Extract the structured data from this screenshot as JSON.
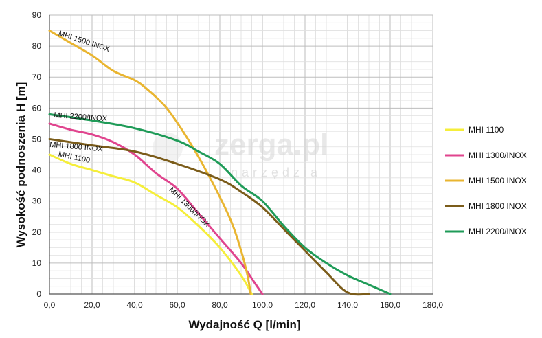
{
  "chart_data": {
    "type": "line",
    "xlabel": "Wydajność Q [l/min]",
    "ylabel": "Wysokość podnoszenia H [m]",
    "xlim": [
      0,
      180
    ],
    "ylim": [
      0,
      90
    ],
    "x_ticks": [
      0,
      20,
      40,
      60,
      80,
      100,
      120,
      140,
      160,
      180
    ],
    "x_tick_labels": [
      "0,0",
      "20,0",
      "40,0",
      "60,0",
      "80,0",
      "100,0",
      "120,0",
      "140,0",
      "160,0",
      "180,0"
    ],
    "y_ticks": [
      0,
      10,
      20,
      30,
      40,
      50,
      60,
      70,
      80,
      90
    ],
    "y_tick_labels": [
      "0",
      "10",
      "20",
      "30",
      "40",
      "50",
      "60",
      "70",
      "80",
      "90"
    ],
    "grid": true,
    "legend_position": "right",
    "series": [
      {
        "name": "MHI 1100",
        "curve_label": "MHI 1100",
        "color": "#f5ee3a",
        "points": [
          [
            0,
            45
          ],
          [
            10,
            42
          ],
          [
            20,
            40
          ],
          [
            30,
            38
          ],
          [
            40,
            36
          ],
          [
            50,
            32
          ],
          [
            60,
            28
          ],
          [
            70,
            22
          ],
          [
            80,
            15
          ],
          [
            90,
            6
          ],
          [
            95,
            0
          ]
        ]
      },
      {
        "name": "MHI 1300/INOX",
        "curve_label": "MHI 1300/INOX",
        "color": "#e0448e",
        "points": [
          [
            0,
            55
          ],
          [
            10,
            53
          ],
          [
            20,
            51.5
          ],
          [
            30,
            49
          ],
          [
            40,
            45
          ],
          [
            50,
            39
          ],
          [
            60,
            34
          ],
          [
            70,
            26
          ],
          [
            80,
            18
          ],
          [
            90,
            10
          ],
          [
            96,
            4
          ],
          [
            100,
            0
          ]
        ]
      },
      {
        "name": "MHI 1500 INOX",
        "curve_label": "MHI 1500 INOX",
        "color": "#e9b530",
        "points": [
          [
            0,
            85
          ],
          [
            10,
            81
          ],
          [
            20,
            77
          ],
          [
            30,
            72
          ],
          [
            40,
            69
          ],
          [
            46,
            66
          ],
          [
            55,
            60
          ],
          [
            65,
            50
          ],
          [
            75,
            38
          ],
          [
            85,
            24
          ],
          [
            90,
            14
          ],
          [
            93,
            6
          ],
          [
            94.5,
            0
          ]
        ]
      },
      {
        "name": "MHI 1800 INOX",
        "curve_label": "MHI 1800 INOX",
        "color": "#7b5c1a",
        "points": [
          [
            0,
            50
          ],
          [
            20,
            48
          ],
          [
            40,
            46
          ],
          [
            60,
            42
          ],
          [
            80,
            37
          ],
          [
            90,
            33
          ],
          [
            100,
            28
          ],
          [
            110,
            21
          ],
          [
            120,
            14
          ],
          [
            130,
            7
          ],
          [
            140,
            0.5
          ],
          [
            150,
            0
          ]
        ]
      },
      {
        "name": "MHI 2200/INOX",
        "curve_label": "MHI 2200/INOX",
        "color": "#1f9b58",
        "points": [
          [
            0,
            58
          ],
          [
            20,
            56
          ],
          [
            40,
            53.5
          ],
          [
            60,
            49.5
          ],
          [
            70,
            46
          ],
          [
            80,
            42
          ],
          [
            90,
            35
          ],
          [
            100,
            30
          ],
          [
            110,
            22
          ],
          [
            120,
            15
          ],
          [
            130,
            10
          ],
          [
            140,
            6
          ],
          [
            150,
            3
          ],
          [
            160,
            0
          ]
        ]
      }
    ]
  },
  "watermark": {
    "brand": "zerga.pl",
    "tagline": "narzędzia"
  }
}
